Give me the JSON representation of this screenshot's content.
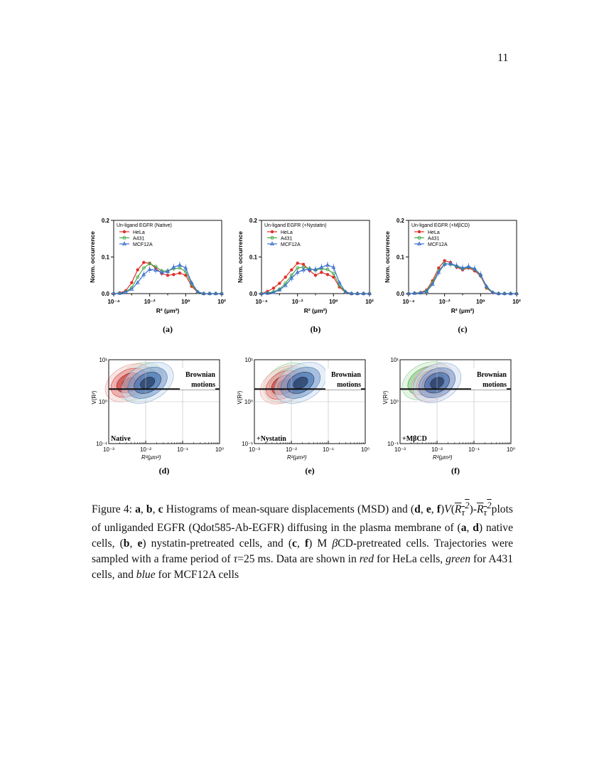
{
  "page_number": "11",
  "histograms": [
    {
      "title": "Un-ligand EGFR (Native)",
      "label": "(a)"
    },
    {
      "title": "Un-ligand EGFR (+Nystatin)",
      "label": "(b)"
    },
    {
      "title": "Un-ligand EGFR (+MβCD)",
      "label": "(c)"
    }
  ],
  "hist_common": {
    "ylabel": "Norm. occurrence",
    "xlabel": "R² (μm²)",
    "yticks": [
      "0.0",
      "0.1",
      "0.2"
    ],
    "xticks": [
      "10⁻⁴",
      "10⁻²",
      "10⁰",
      "10²"
    ],
    "legend": [
      "HeLa",
      "A431",
      "MCF12A"
    ],
    "colors": {
      "HeLa": "#e0302a",
      "A431": "#4aa84a",
      "MCF12A": "#3a6fd0"
    }
  },
  "density": [
    {
      "condition": "Native",
      "label": "(d)"
    },
    {
      "condition": "+Nystatin",
      "label": "(e)"
    },
    {
      "condition": "+MβCD",
      "label": "(f)"
    }
  ],
  "density_common": {
    "region_label": [
      "Brownian",
      "motions"
    ],
    "ylabel": "V(R²)",
    "xlabel": "R²(μm²)",
    "yticks": [
      "10¹",
      "10⁰",
      "10⁻¹"
    ],
    "xticks": [
      "10⁻³",
      "10⁻²",
      "10⁻¹",
      "10⁰"
    ]
  },
  "chart_data": [
    {
      "type": "line",
      "title": "Un-ligand EGFR (Native)",
      "xlabel": "R² (μm²)",
      "ylabel": "Norm. occurrence",
      "xscale": "log",
      "xlim": [
        0.0001,
        100
      ],
      "ylim": [
        0,
        0.2
      ],
      "x": [
        -4,
        -3.67,
        -3.33,
        -3,
        -2.67,
        -2.33,
        -2,
        -1.67,
        -1.33,
        -1,
        -0.67,
        -0.33,
        0,
        0.33,
        0.67,
        1,
        1.33,
        1.67,
        2
      ],
      "series": [
        {
          "name": "HeLa",
          "values": [
            0,
            0.002,
            0.008,
            0.03,
            0.065,
            0.085,
            0.083,
            0.07,
            0.055,
            0.05,
            0.052,
            0.056,
            0.05,
            0.02,
            0.003,
            0,
            0,
            0,
            0
          ]
        },
        {
          "name": "A431",
          "values": [
            0,
            0.001,
            0.005,
            0.016,
            0.045,
            0.07,
            0.082,
            0.074,
            0.062,
            0.062,
            0.068,
            0.07,
            0.06,
            0.025,
            0.004,
            0,
            0,
            0,
            0
          ]
        },
        {
          "name": "MCF12A",
          "values": [
            0,
            0.001,
            0.004,
            0.012,
            0.03,
            0.052,
            0.066,
            0.064,
            0.058,
            0.06,
            0.072,
            0.078,
            0.07,
            0.03,
            0.005,
            0,
            0,
            0,
            0
          ]
        }
      ]
    },
    {
      "type": "line",
      "title": "Un-ligand EGFR (+Nystatin)",
      "xlabel": "R² (μm²)",
      "ylabel": "Norm. occurrence",
      "xscale": "log",
      "xlim": [
        0.0001,
        100
      ],
      "ylim": [
        0,
        0.2
      ],
      "x": [
        -4,
        -3.67,
        -3.33,
        -3,
        -2.67,
        -2.33,
        -2,
        -1.67,
        -1.33,
        -1,
        -0.67,
        -0.33,
        0,
        0.33,
        0.67,
        1,
        1.33,
        1.67,
        2
      ],
      "series": [
        {
          "name": "HeLa",
          "values": [
            0,
            0.006,
            0.015,
            0.028,
            0.045,
            0.065,
            0.083,
            0.08,
            0.063,
            0.05,
            0.058,
            0.052,
            0.045,
            0.018,
            0.003,
            0,
            0,
            0,
            0
          ]
        },
        {
          "name": "A431",
          "values": [
            0,
            0.002,
            0.005,
            0.012,
            0.028,
            0.05,
            0.07,
            0.072,
            0.068,
            0.064,
            0.068,
            0.066,
            0.055,
            0.022,
            0.004,
            0,
            0,
            0,
            0
          ]
        },
        {
          "name": "MCF12A",
          "values": [
            0,
            0.001,
            0.003,
            0.01,
            0.022,
            0.042,
            0.058,
            0.065,
            0.066,
            0.066,
            0.072,
            0.078,
            0.072,
            0.03,
            0.005,
            0,
            0,
            0,
            0
          ]
        }
      ]
    },
    {
      "type": "line",
      "title": "Un-ligand EGFR (+MβCD)",
      "xlabel": "R² (μm²)",
      "ylabel": "Norm. occurrence",
      "xscale": "log",
      "xlim": [
        0.0001,
        100
      ],
      "ylim": [
        0,
        0.2
      ],
      "x": [
        -4,
        -3.67,
        -3.33,
        -3,
        -2.67,
        -2.33,
        -2,
        -1.67,
        -1.33,
        -1,
        -0.67,
        -0.33,
        0,
        0.33,
        0.67,
        1,
        1.33,
        1.67,
        2
      ],
      "series": [
        {
          "name": "HeLa",
          "values": [
            0,
            0.001,
            0.003,
            0.01,
            0.035,
            0.07,
            0.09,
            0.085,
            0.072,
            0.065,
            0.07,
            0.062,
            0.048,
            0.015,
            0.002,
            0,
            0,
            0,
            0
          ]
        },
        {
          "name": "A431",
          "values": [
            0,
            0.001,
            0.002,
            0.008,
            0.03,
            0.062,
            0.082,
            0.08,
            0.074,
            0.068,
            0.072,
            0.066,
            0.05,
            0.017,
            0.003,
            0,
            0,
            0,
            0
          ]
        },
        {
          "name": "MCF12A",
          "values": [
            0,
            0.001,
            0.002,
            0.006,
            0.025,
            0.058,
            0.08,
            0.082,
            0.076,
            0.07,
            0.074,
            0.068,
            0.052,
            0.02,
            0.003,
            0,
            0,
            0,
            0
          ]
        }
      ]
    }
  ]
}
